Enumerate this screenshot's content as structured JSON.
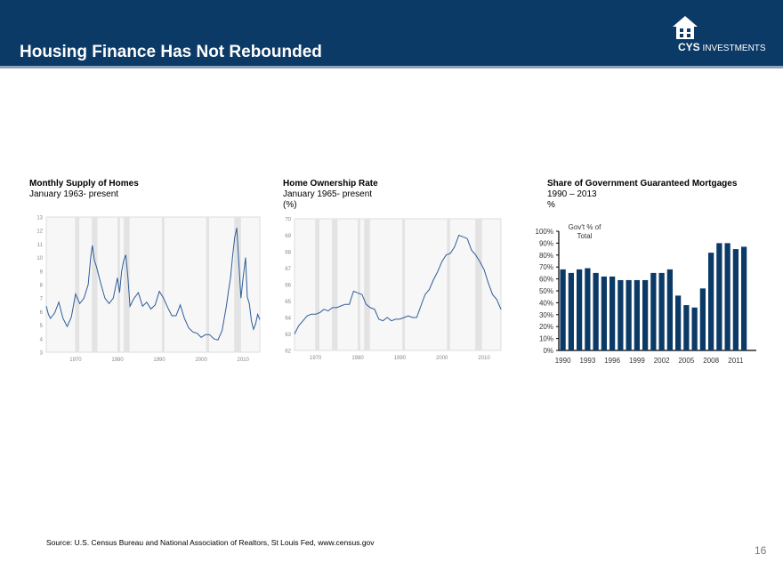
{
  "page": {
    "title": "Housing Finance Has Not Rebounded",
    "logo_text_bold": "CYS",
    "logo_text": "INVESTMENTS",
    "source": "Source: U.S. Census Bureau and National Association of Realtors, St Louis Fed, www.census.gov",
    "page_number": "16",
    "colors": {
      "header": "#0b3a66",
      "line": "#2e5c99",
      "bar": "#0b3a66",
      "recession": "#e3e3e3"
    },
    "icons": [
      "house-logo-icon"
    ]
  },
  "chart_data": [
    {
      "type": "line",
      "title": "Monthly Supply of Homes",
      "subtitle": "January 1963- present",
      "xlim": [
        1963,
        2014
      ],
      "ylim": [
        3,
        13
      ],
      "x_ticks": [
        1970,
        1980,
        1990,
        2000,
        2010
      ],
      "y_ticks": [
        3,
        4,
        5,
        6,
        7,
        8,
        9,
        10,
        11,
        12,
        13
      ],
      "recessions": [
        [
          1969.9,
          1970.9
        ],
        [
          1973.9,
          1975.2
        ],
        [
          1980.0,
          1980.6
        ],
        [
          1981.5,
          1982.9
        ],
        [
          1990.6,
          1991.2
        ],
        [
          2001.2,
          2001.9
        ],
        [
          2007.9,
          2009.5
        ]
      ],
      "x": [
        1963,
        1963.5,
        1964,
        1965,
        1966,
        1967,
        1968,
        1969,
        1970,
        1971,
        1972,
        1973,
        1973.6,
        1974,
        1974.5,
        1975,
        1976,
        1977,
        1978,
        1979,
        1980,
        1980.5,
        1981,
        1981.5,
        1982,
        1982.5,
        1983,
        1984,
        1985,
        1986,
        1987,
        1988,
        1989,
        1990,
        1991,
        1992,
        1993,
        1994,
        1995,
        1996,
        1997,
        1998,
        1999,
        2000,
        2001,
        2002,
        2003,
        2004,
        2005,
        2006,
        2006.5,
        2007,
        2007.5,
        2008,
        2008.5,
        2009,
        2009.5,
        2010,
        2010.6,
        2011,
        2011.5,
        2012,
        2012.5,
        2013,
        2013.5,
        2014
      ],
      "values": [
        6.4,
        5.8,
        5.5,
        5.9,
        6.7,
        5.5,
        4.9,
        5.6,
        7.3,
        6.6,
        7.0,
        8.0,
        10.0,
        10.9,
        9.8,
        9.3,
        8.1,
        7.0,
        6.6,
        7.0,
        8.5,
        7.4,
        9.0,
        9.8,
        10.2,
        8.5,
        6.4,
        7.0,
        7.4,
        6.4,
        6.7,
        6.2,
        6.5,
        7.5,
        7.0,
        6.3,
        5.7,
        5.7,
        6.5,
        5.5,
        4.8,
        4.5,
        4.4,
        4.1,
        4.3,
        4.3,
        4.0,
        3.9,
        4.6,
        6.4,
        7.5,
        8.5,
        10.1,
        11.5,
        12.2,
        9.5,
        7.0,
        8.5,
        10.0,
        7.1,
        6.6,
        5.3,
        4.7,
        5.1,
        5.8,
        5.4
      ]
    },
    {
      "type": "line",
      "title": "Home Ownership Rate",
      "subtitle": "January 1965- present",
      "ylabel": "(%)",
      "xlim": [
        1965,
        2014
      ],
      "ylim": [
        62,
        70
      ],
      "x_ticks": [
        1970,
        1980,
        1990,
        2000,
        2010
      ],
      "y_ticks": [
        62,
        63,
        64,
        65,
        66,
        67,
        68,
        69,
        70
      ],
      "recessions": [
        [
          1969.9,
          1970.9
        ],
        [
          1973.9,
          1975.2
        ],
        [
          1980.0,
          1980.6
        ],
        [
          1981.5,
          1982.9
        ],
        [
          1990.6,
          1991.2
        ],
        [
          2001.2,
          2001.9
        ],
        [
          2007.9,
          2009.5
        ]
      ],
      "x": [
        1965,
        1966,
        1967,
        1968,
        1969,
        1970,
        1971,
        1972,
        1973,
        1974,
        1975,
        1976,
        1977,
        1978,
        1979,
        1980,
        1981,
        1982,
        1983,
        1984,
        1985,
        1986,
        1987,
        1988,
        1989,
        1990,
        1991,
        1992,
        1993,
        1994,
        1995,
        1996,
        1997,
        1998,
        1999,
        2000,
        2001,
        2002,
        2003,
        2004,
        2005,
        2006,
        2007,
        2008,
        2009,
        2010,
        2011,
        2012,
        2013,
        2014
      ],
      "values": [
        63.0,
        63.5,
        63.8,
        64.1,
        64.2,
        64.2,
        64.3,
        64.5,
        64.4,
        64.6,
        64.6,
        64.7,
        64.8,
        64.8,
        65.6,
        65.5,
        65.4,
        64.8,
        64.6,
        64.5,
        63.9,
        63.8,
        64.0,
        63.8,
        63.9,
        63.9,
        64.0,
        64.1,
        64.0,
        64.0,
        64.7,
        65.4,
        65.7,
        66.3,
        66.8,
        67.4,
        67.8,
        67.9,
        68.3,
        69.0,
        68.9,
        68.8,
        68.1,
        67.8,
        67.4,
        66.9,
        66.1,
        65.4,
        65.1,
        64.5
      ]
    },
    {
      "type": "bar",
      "title": "Share of Government Guaranteed Mortgages",
      "subtitle": "1990 – 2013",
      "ylabel": "%",
      "legend": "Gov't % of Total",
      "ylim": [
        0,
        100
      ],
      "y_ticks": [
        "0%",
        "10%",
        "20%",
        "30%",
        "40%",
        "50%",
        "60%",
        "70%",
        "80%",
        "90%",
        "100%"
      ],
      "x_tick_labels": [
        "1990",
        "1993",
        "1996",
        "1999",
        "2002",
        "2005",
        "2008",
        "2011"
      ],
      "categories": [
        1990,
        1991,
        1992,
        1993,
        1994,
        1995,
        1996,
        1997,
        1998,
        1999,
        2000,
        2001,
        2002,
        2003,
        2004,
        2005,
        2006,
        2007,
        2008,
        2009,
        2010,
        2011,
        2012,
        2013
      ],
      "values": [
        68,
        65,
        68,
        69,
        65,
        62,
        62,
        59,
        59,
        59,
        59,
        65,
        65,
        68,
        46,
        38,
        36,
        52,
        82,
        90,
        90,
        85,
        87,
        0
      ]
    }
  ]
}
